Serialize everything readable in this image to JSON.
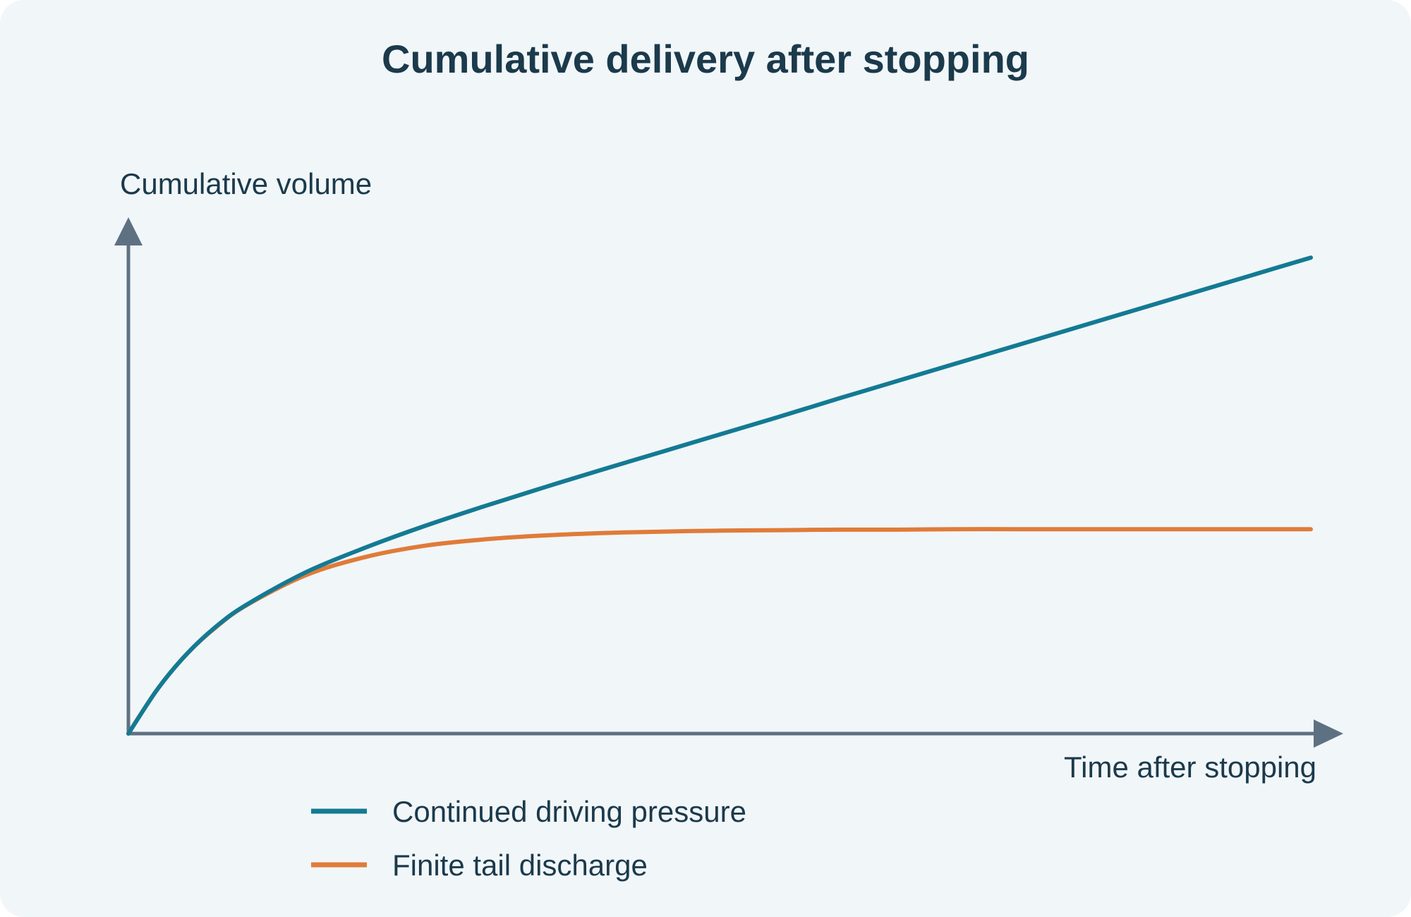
{
  "chart_data": {
    "type": "line",
    "title": "Cumulative delivery after stopping",
    "xlabel": "Time after stopping",
    "ylabel": "Cumulative volume",
    "x_ticks": [],
    "y_ticks": [],
    "xlim": [
      0,
      10
    ],
    "ylim": [
      0,
      10
    ],
    "grid": false,
    "legend_position": "bottom-left",
    "series": [
      {
        "name": "Continued driving pressure",
        "color": "#137a93",
        "x": [
          0,
          0.25,
          0.5,
          0.75,
          1,
          1.5,
          2,
          2.5,
          3,
          3.5,
          4,
          4.5,
          5,
          5.5,
          6,
          6.5,
          7,
          7.5,
          8,
          8.5,
          9,
          9.5,
          10
        ],
        "y": [
          0,
          0.92,
          1.64,
          2.2,
          2.63,
          3.29,
          3.79,
          4.23,
          4.63,
          5.01,
          5.38,
          5.74,
          6.1,
          6.46,
          6.83,
          7.19,
          7.55,
          7.91,
          8.27,
          8.63,
          8.99,
          9.35,
          9.71
        ]
      },
      {
        "name": "Finite tail discharge",
        "color": "#e07b39",
        "x": [
          0,
          0.25,
          0.5,
          0.75,
          1,
          1.5,
          2,
          2.5,
          3,
          3.5,
          4,
          4.5,
          5,
          5.5,
          6,
          6.5,
          7,
          7.5,
          8,
          8.5,
          9,
          9.5,
          10
        ],
        "y": [
          0,
          0.92,
          1.64,
          2.19,
          2.62,
          3.23,
          3.6,
          3.83,
          3.96,
          4.04,
          4.09,
          4.12,
          4.14,
          4.15,
          4.16,
          4.16,
          4.17,
          4.17,
          4.17,
          4.17,
          4.17,
          4.17,
          4.17
        ]
      }
    ]
  }
}
